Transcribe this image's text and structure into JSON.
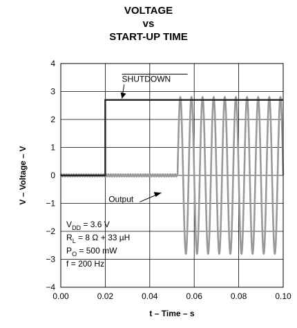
{
  "chart_data": {
    "type": "line",
    "title_lines": [
      "VOLTAGE",
      "vs",
      "START-UP TIME"
    ],
    "xlabel": "t – Time – s",
    "ylabel": "V – Voltage – V",
    "xlim": [
      0.0,
      0.1
    ],
    "ylim": [
      -4,
      4
    ],
    "x_ticks": [
      "0.00",
      "0.02",
      "0.04",
      "0.06",
      "0.08",
      "0.10"
    ],
    "y_ticks": [
      "4",
      "3",
      "2",
      "1",
      "0",
      "−1",
      "−2",
      "−3",
      "−4"
    ],
    "grid": true,
    "series": [
      {
        "name": "SHUTDOWN",
        "color": "#222222",
        "x": [
          0.0,
          0.02,
          0.02,
          0.1
        ],
        "y": [
          0.0,
          0.0,
          2.7,
          2.7
        ]
      },
      {
        "name": "Output",
        "color": "#999999",
        "frequency_hz": 200,
        "amplitude_v": 2.8,
        "onset_s": 0.0525,
        "x": [
          0.0,
          0.0525,
          0.1
        ],
        "y": [
          0.0,
          0.0,
          0.0
        ]
      }
    ],
    "annotations": {
      "shutdown_label": "SHUTDOWN",
      "output_label": "Output",
      "conditions": [
        {
          "base": "V",
          "sub": "DD",
          "rest": " = 3.6 V"
        },
        {
          "base": "R",
          "sub": "L",
          "rest": " = 8 Ω + 33 µH"
        },
        {
          "base": "P",
          "sub": "O",
          "rest": " = 500 mW"
        },
        {
          "base": "f",
          "sub": "",
          "rest": " = 200 Hz"
        }
      ]
    }
  }
}
